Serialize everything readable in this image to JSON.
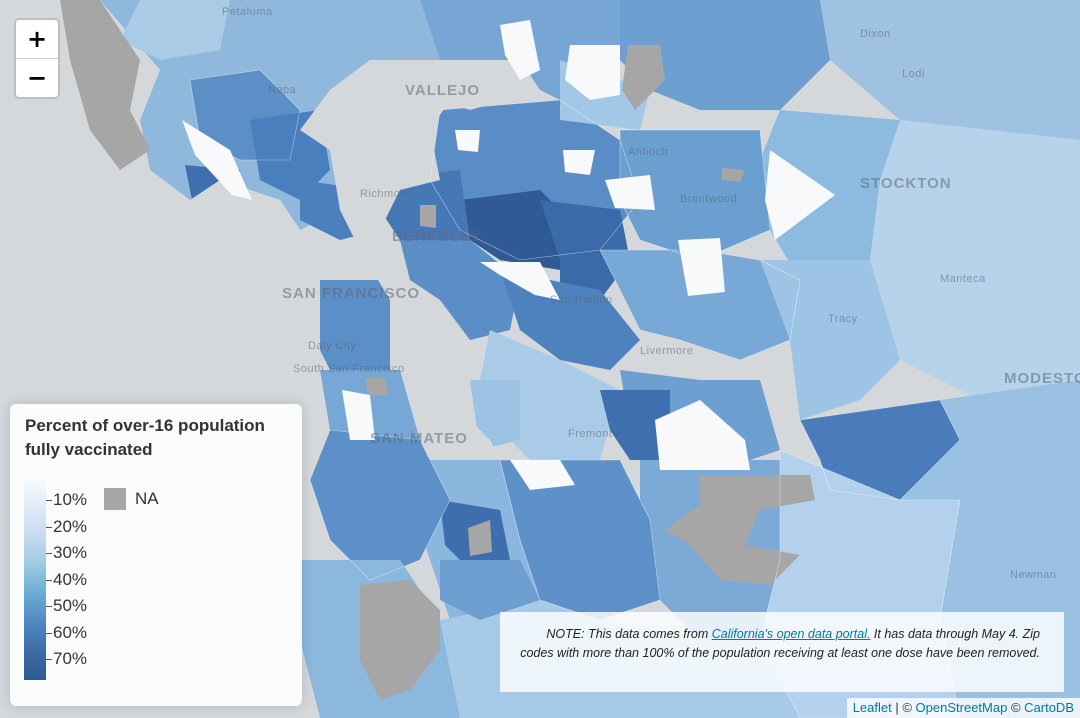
{
  "map": {
    "place_labels": [
      {
        "text": "Petaluma",
        "style": "small"
      },
      {
        "text": "Napa",
        "style": "small"
      },
      {
        "text": "VALLEJO",
        "style": "big"
      },
      {
        "text": "Dixon",
        "style": "small"
      },
      {
        "text": "Lodi",
        "style": "small"
      },
      {
        "text": "STOCKTON",
        "style": "big"
      },
      {
        "text": "Antioch",
        "style": "small"
      },
      {
        "text": "Brentwood",
        "style": "small"
      },
      {
        "text": "Richmond",
        "style": "small"
      },
      {
        "text": "BERKELEY",
        "style": "big"
      },
      {
        "text": "Manteca",
        "style": "small"
      },
      {
        "text": "SAN FRANCISCO",
        "style": "big"
      },
      {
        "text": "San Ramon",
        "style": "small"
      },
      {
        "text": "Tracy",
        "style": "small"
      },
      {
        "text": "Daly City",
        "style": "small"
      },
      {
        "text": "South San Francisco",
        "style": "small"
      },
      {
        "text": "Livermore",
        "style": "small"
      },
      {
        "text": "MODESTO",
        "style": "big"
      },
      {
        "text": "SAN MATEO",
        "style": "big"
      },
      {
        "text": "Fremont",
        "style": "small"
      },
      {
        "text": "Newman",
        "style": "small"
      }
    ],
    "colors": {
      "water": "#d4d8db",
      "na": "#a6a6a6",
      "scale": [
        "#f7fbff",
        "#deebf7",
        "#c6dbef",
        "#9ecae1",
        "#6baed6",
        "#4f86c0",
        "#3c6ca5",
        "#2f5a93"
      ]
    }
  },
  "zoom": {
    "in_label": "+",
    "out_label": "−"
  },
  "legend": {
    "title": "Percent of over-16 population fully vaccinated",
    "ticks": [
      "10%",
      "20%",
      "30%",
      "40%",
      "50%",
      "60%",
      "70%"
    ],
    "na_label": "NA"
  },
  "note": {
    "prefix": "NOTE: This data comes from ",
    "link": "California's open data portal.",
    "suffix": " It has data through May 4. Zip codes with more than 100% of the population receiving at least one dose have been removed."
  },
  "attribution": {
    "leaflet": "Leaflet",
    "separator1": " | © ",
    "osm": "OpenStreetMap",
    "separator2": " © ",
    "carto": "CartoDB"
  }
}
